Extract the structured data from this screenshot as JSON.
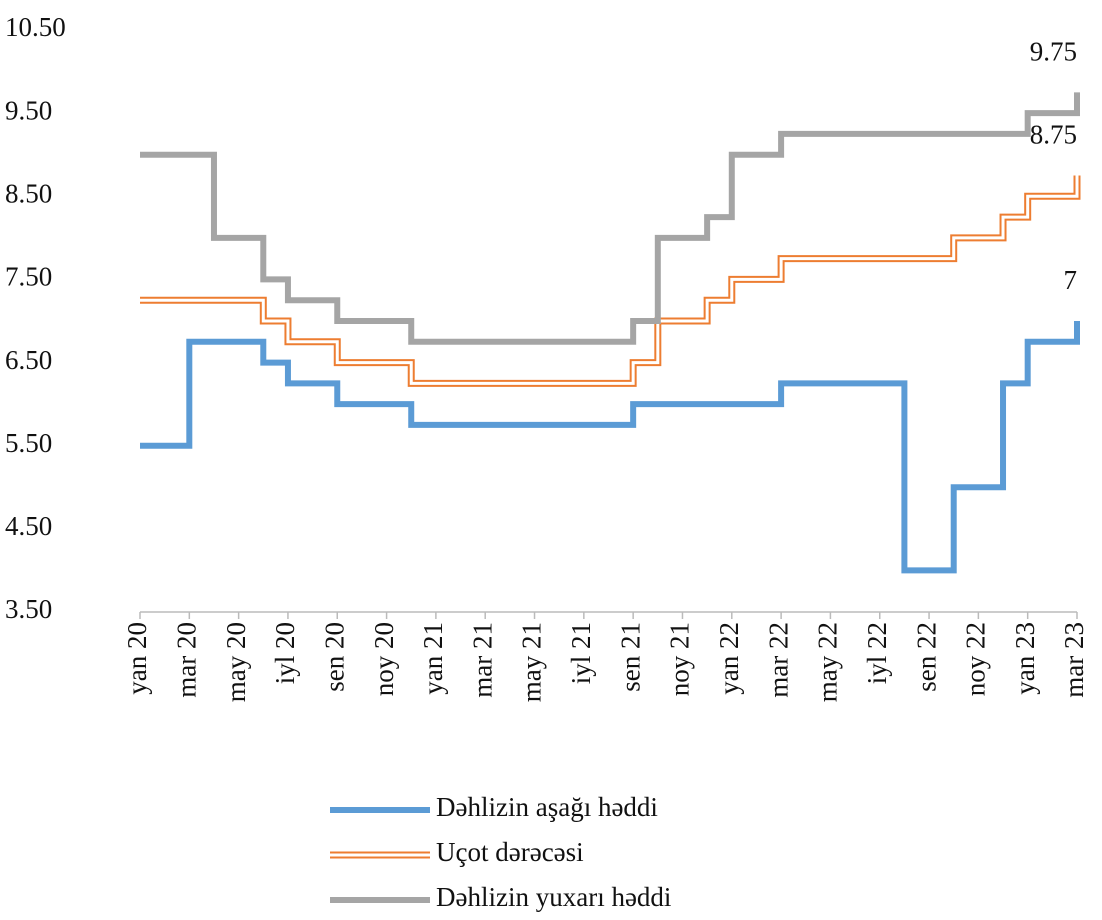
{
  "chart_data": {
    "type": "step-line",
    "categories": [
      "yan 20",
      null,
      "mar 20",
      null,
      "may 20",
      null,
      "iyl 20",
      null,
      "sen 20",
      null,
      "noy 20",
      null,
      "yan 21",
      null,
      "mar 21",
      null,
      "may 21",
      null,
      "iyl 21",
      null,
      "sen 21",
      null,
      "noy 21",
      null,
      "yan 22",
      null,
      "mar 22",
      null,
      "may 22",
      null,
      "iyl 22",
      null,
      "sen 22",
      null,
      "noy 22",
      null,
      "yan 23",
      null,
      "mar 23"
    ],
    "series": [
      {
        "name": "Dəhlizin aşağı həddi",
        "color": "#5b9bd5",
        "style": "solid",
        "values": [
          5.5,
          5.5,
          6.75,
          6.75,
          6.75,
          6.5,
          6.25,
          6.25,
          6.0,
          6.0,
          6.0,
          5.75,
          5.75,
          5.75,
          5.75,
          5.75,
          5.75,
          5.75,
          5.75,
          5.75,
          6.0,
          6.0,
          6.0,
          6.0,
          6.0,
          6.0,
          6.25,
          6.25,
          6.25,
          6.25,
          6.25,
          4.0,
          4.0,
          5.0,
          5.0,
          6.25,
          6.75,
          6.75,
          7.0
        ],
        "value_labels": [
          null,
          null,
          null,
          null,
          null,
          null,
          null,
          null,
          null,
          null,
          null,
          null,
          null,
          null,
          null,
          null,
          null,
          null,
          null,
          null,
          null,
          null,
          null,
          null,
          null,
          null,
          null,
          null,
          null,
          null,
          null,
          null,
          null,
          null,
          null,
          null,
          null,
          null,
          "7"
        ]
      },
      {
        "name": "Uçot dərəcəsi",
        "color": "#ed7d31",
        "style": "double",
        "values": [
          7.25,
          7.25,
          7.25,
          7.25,
          7.25,
          7.0,
          6.75,
          6.75,
          6.5,
          6.5,
          6.5,
          6.25,
          6.25,
          6.25,
          6.25,
          6.25,
          6.25,
          6.25,
          6.25,
          6.25,
          6.5,
          7.0,
          7.0,
          7.25,
          7.5,
          7.5,
          7.75,
          7.75,
          7.75,
          7.75,
          7.75,
          7.75,
          7.75,
          8.0,
          8.0,
          8.25,
          8.5,
          8.5,
          8.75
        ],
        "value_labels": [
          null,
          null,
          null,
          null,
          null,
          null,
          null,
          null,
          null,
          null,
          null,
          null,
          null,
          null,
          null,
          null,
          null,
          null,
          null,
          null,
          null,
          null,
          null,
          null,
          null,
          null,
          null,
          null,
          null,
          null,
          null,
          null,
          null,
          null,
          null,
          null,
          null,
          null,
          "8.75"
        ]
      },
      {
        "name": "Dəhlizin yuxarı həddi",
        "color": "#a5a5a5",
        "style": "solid",
        "values": [
          9.0,
          9.0,
          9.0,
          8.0,
          8.0,
          7.5,
          7.25,
          7.25,
          7.0,
          7.0,
          7.0,
          6.75,
          6.75,
          6.75,
          6.75,
          6.75,
          6.75,
          6.75,
          6.75,
          6.75,
          7.0,
          8.0,
          8.0,
          8.25,
          9.0,
          9.0,
          9.25,
          9.25,
          9.25,
          9.25,
          9.25,
          9.25,
          9.25,
          9.25,
          9.25,
          9.25,
          9.5,
          9.5,
          9.75
        ],
        "value_labels": [
          null,
          null,
          null,
          null,
          null,
          null,
          null,
          null,
          null,
          null,
          null,
          null,
          null,
          null,
          null,
          null,
          null,
          null,
          null,
          null,
          null,
          null,
          null,
          null,
          null,
          null,
          null,
          null,
          null,
          null,
          null,
          null,
          null,
          null,
          null,
          null,
          null,
          null,
          "9.75"
        ]
      }
    ],
    "ylim": [
      3.5,
      10.5
    ],
    "yticks": [
      {
        "value": 3.5,
        "label": "3.50"
      },
      {
        "value": 4.5,
        "label": "4.50"
      },
      {
        "value": 5.5,
        "label": "5.50"
      },
      {
        "value": 6.5,
        "label": "6.50"
      },
      {
        "value": 7.5,
        "label": "7.50"
      },
      {
        "value": 8.5,
        "label": "8.50"
      },
      {
        "value": 9.5,
        "label": "9.50"
      },
      {
        "value": 10.5,
        "label": "10.50"
      }
    ],
    "grid": false,
    "legend": "bottom"
  }
}
